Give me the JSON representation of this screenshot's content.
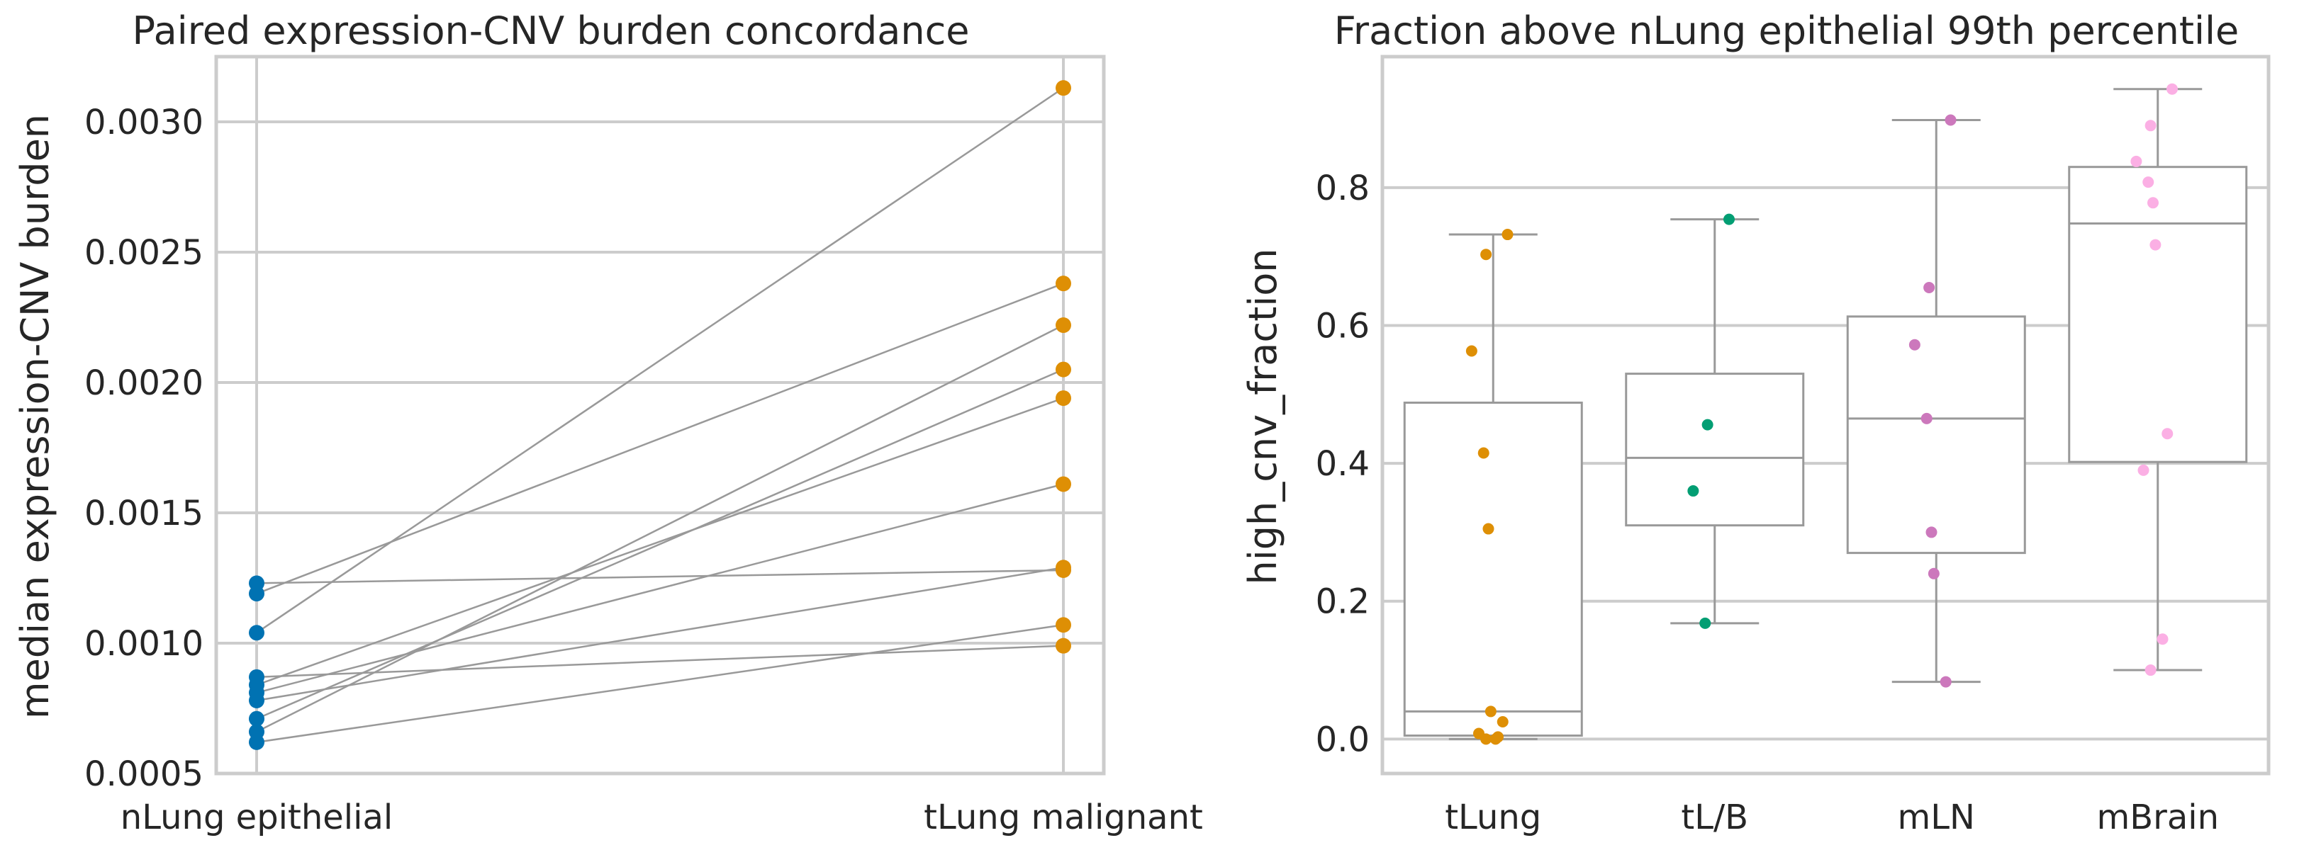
{
  "chart_data": [
    {
      "type": "line",
      "title": "Paired expression-CNV burden concordance",
      "xlabel": "",
      "ylabel": "median expression-CNV burden",
      "categories": [
        "nLung epithelial",
        "tLung malignant"
      ],
      "ylim": [
        0.0005,
        0.00325
      ],
      "yticks": [
        "0.0005",
        "0.0010",
        "0.0015",
        "0.0020",
        "0.0025",
        "0.0030"
      ],
      "grid": true,
      "colors": {
        "nLung epithelial": "#0072b2",
        "tLung malignant": "#de8f05",
        "line": "#999999"
      },
      "pairs": [
        [
          0.00123,
          0.00128
        ],
        [
          0.00119,
          0.00238
        ],
        [
          0.00104,
          0.00313
        ],
        [
          0.00087,
          0.00099
        ],
        [
          0.00084,
          0.00194
        ],
        [
          0.00081,
          0.00161
        ],
        [
          0.00078,
          0.00129
        ],
        [
          0.00071,
          0.00205
        ],
        [
          0.00066,
          0.00222
        ],
        [
          0.00062,
          0.00107
        ]
      ]
    },
    {
      "type": "box",
      "title": "Fraction above nLung epithelial 99th percentile",
      "xlabel": "",
      "ylabel": "high_cnv_fraction",
      "categories": [
        "tLung",
        "tL/B",
        "mLN",
        "mBrain"
      ],
      "ylim": [
        -0.05,
        0.99
      ],
      "yticks": [
        "0.0",
        "0.2",
        "0.4",
        "0.6",
        "0.8"
      ],
      "grid": true,
      "colors": {
        "tLung": "#de8f05",
        "tL/B": "#029e73",
        "mLN": "#cc78bc",
        "mBrain": "#fbafe4",
        "box": "#999999"
      },
      "boxes": [
        {
          "q1": 0.005,
          "median": 0.04,
          "q3": 0.488,
          "whisker_low": 0.0,
          "whisker_high": 0.732
        },
        {
          "q1": 0.31,
          "median": 0.408,
          "q3": 0.53,
          "whisker_low": 0.168,
          "whisker_high": 0.754
        },
        {
          "q1": 0.27,
          "median": 0.465,
          "q3": 0.613,
          "whisker_low": 0.083,
          "whisker_high": 0.898
        },
        {
          "q1": 0.402,
          "median": 0.748,
          "q3": 0.83,
          "whisker_low": 0.1,
          "whisker_high": 0.943
        }
      ],
      "points": [
        [
          0.732,
          0.703,
          0.563,
          0.415,
          0.305,
          0.04,
          0.025,
          0.008,
          0.003,
          0.0,
          0.0
        ],
        [
          0.754,
          0.456,
          0.36,
          0.168
        ],
        [
          0.898,
          0.655,
          0.572,
          0.465,
          0.3,
          0.24,
          0.083
        ],
        [
          0.943,
          0.89,
          0.838,
          0.808,
          0.778,
          0.717,
          0.443,
          0.39,
          0.145,
          0.1
        ]
      ]
    }
  ]
}
